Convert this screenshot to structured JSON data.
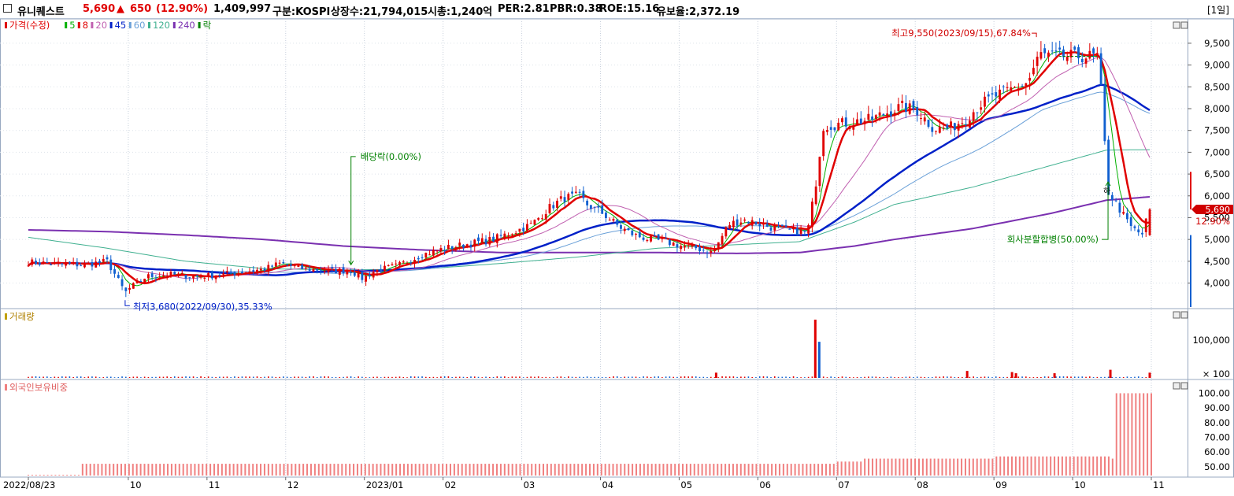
{
  "header": {
    "stock_name": "유니퀘스트",
    "price": "5,690",
    "change_arrow": "▲",
    "change": "650",
    "change_pct": "(12.90%)",
    "volume": "1,409,997",
    "market": "구분:KOSPI",
    "listed": "상장수:21,794,015",
    "mcap": "시총:1,240억",
    "per": "PER:2.81",
    "pbr": "PBR:0.38",
    "roe": "ROE:15.16",
    "retention": "유보율:2,372.19",
    "period": "[1일]"
  },
  "colors": {
    "up": "#e00000",
    "down": "#1060d0",
    "ma5": "#00b000",
    "ma8": "#e00000",
    "ma20": "#c060b0",
    "ma45": "#0020c8",
    "ma60": "#6aa0d8",
    "ma120": "#40b090",
    "ma240": "#7a30b0",
    "foreign": "#f08080",
    "annot": "#008000",
    "annot_red": "#d00000"
  },
  "legend": [
    {
      "label": "가격(수정)",
      "color": "#e00000"
    },
    {
      "label": "5",
      "color": "#00b000"
    },
    {
      "label": "8",
      "color": "#e00000"
    },
    {
      "label": "20",
      "color": "#c060b0"
    },
    {
      "label": "45",
      "color": "#0020c8"
    },
    {
      "label": "60",
      "color": "#6aa0d8"
    },
    {
      "label": "120",
      "color": "#40b090"
    },
    {
      "label": "240",
      "color": "#7a30b0"
    },
    {
      "label": "락",
      "color": "#008000"
    }
  ],
  "panels": {
    "volume_title": "거래량",
    "foreign_title": "외국인보유비중"
  },
  "annotations": {
    "high": "최고9,550(2023/09/15),67.84%",
    "low": "최저3,680(2022/09/30),35.33%",
    "dividend": "배당락(0.00%)",
    "split": "회사분할합병(50.00%)",
    "split_marker": "하"
  },
  "price_tag": {
    "price": "5,690",
    "pct": "12.90%"
  },
  "chart_data": {
    "type": "candlestick",
    "price_axis": {
      "ticks": [
        "9,500",
        "9,000",
        "8,500",
        "8,000",
        "7,500",
        "7,000",
        "6,500",
        "6,000",
        "5,500",
        "5,000",
        "4,500",
        "4,000"
      ],
      "values": [
        9500,
        9000,
        8500,
        8000,
        7500,
        7000,
        6500,
        6000,
        5500,
        5000,
        4500,
        4000
      ],
      "range": [
        3450,
        9950
      ]
    },
    "volume_axis": {
      "ticks": [
        "100,000",
        "× 100"
      ],
      "values": [
        100000,
        0
      ]
    },
    "foreign_axis": {
      "ticks": [
        "100.00",
        "90.00",
        "80.00",
        "70.00",
        "60.00",
        "50.00"
      ],
      "values": [
        100,
        90,
        80,
        70,
        60,
        50
      ],
      "range": [
        44,
        104
      ]
    },
    "x_labels": [
      "2022/08/23",
      "10",
      "11",
      "12",
      "2023/01",
      "02",
      "03",
      "04",
      "05",
      "06",
      "07",
      "08",
      "09",
      "10",
      "11"
    ],
    "months_from_start": [
      0,
      1.27,
      2.27,
      3.27,
      4.27,
      5.27,
      6.27,
      7.27,
      8.27,
      9.27,
      10.27,
      11.27,
      12.27,
      13.27,
      14.27
    ],
    "price_anchors": [
      [
        0,
        4480
      ],
      [
        0.35,
        4440
      ],
      [
        0.7,
        4420
      ],
      [
        1.0,
        4500
      ],
      [
        1.1,
        4200
      ],
      [
        1.23,
        3780
      ],
      [
        1.3,
        3900
      ],
      [
        1.5,
        4150
      ],
      [
        1.8,
        4200
      ],
      [
        2.1,
        4150
      ],
      [
        2.4,
        4180
      ],
      [
        2.7,
        4250
      ],
      [
        3.0,
        4320
      ],
      [
        3.2,
        4450
      ],
      [
        3.5,
        4330
      ],
      [
        3.9,
        4280
      ],
      [
        4.1,
        4290
      ],
      [
        4.25,
        4100
      ],
      [
        4.4,
        4280
      ],
      [
        4.7,
        4400
      ],
      [
        5.0,
        4650
      ],
      [
        5.3,
        4800
      ],
      [
        5.6,
        4900
      ],
      [
        5.9,
        5000
      ],
      [
        6.2,
        5200
      ],
      [
        6.4,
        5350
      ],
      [
        6.6,
        5700
      ],
      [
        6.8,
        5950
      ],
      [
        7.0,
        6000
      ],
      [
        7.1,
        5800
      ],
      [
        7.3,
        5600
      ],
      [
        7.5,
        5300
      ],
      [
        7.7,
        5100
      ],
      [
        7.9,
        5000
      ],
      [
        8.1,
        4950
      ],
      [
        8.3,
        4850
      ],
      [
        8.5,
        4800
      ],
      [
        8.7,
        4700
      ],
      [
        8.9,
        5350
      ],
      [
        9.1,
        5450
      ],
      [
        9.3,
        5350
      ],
      [
        9.5,
        5250
      ],
      [
        9.7,
        5200
      ],
      [
        9.9,
        5150
      ],
      [
        10.0,
        6200
      ],
      [
        10.1,
        7600
      ],
      [
        10.3,
        7650
      ],
      [
        10.5,
        7700
      ],
      [
        10.7,
        7750
      ],
      [
        10.9,
        7900
      ],
      [
        11.1,
        8050
      ],
      [
        11.3,
        7950
      ],
      [
        11.5,
        7550
      ],
      [
        11.7,
        7550
      ],
      [
        11.9,
        7750
      ],
      [
        12.1,
        8100
      ],
      [
        12.3,
        8300
      ],
      [
        12.5,
        8450
      ],
      [
        12.7,
        8600
      ],
      [
        12.85,
        9250
      ],
      [
        13.0,
        9200
      ],
      [
        13.3,
        9200
      ],
      [
        13.6,
        9200
      ],
      [
        13.72,
        6100
      ],
      [
        13.85,
        5750
      ],
      [
        14.0,
        5300
      ],
      [
        14.15,
        5100
      ],
      [
        14.25,
        5690
      ]
    ],
    "ma240_anchors": [
      [
        0,
        5220
      ],
      [
        1,
        5180
      ],
      [
        2,
        5100
      ],
      [
        3,
        5000
      ],
      [
        4,
        4850
      ],
      [
        5,
        4760
      ],
      [
        6,
        4700
      ],
      [
        7,
        4700
      ],
      [
        8,
        4700
      ],
      [
        9,
        4680
      ],
      [
        9.8,
        4700
      ],
      [
        10.5,
        4850
      ],
      [
        11,
        5000
      ],
      [
        12,
        5250
      ],
      [
        13,
        5600
      ],
      [
        13.7,
        5900
      ],
      [
        14.27,
        5980
      ]
    ],
    "ma120_anchors": [
      [
        0,
        5050
      ],
      [
        1,
        4800
      ],
      [
        2,
        4500
      ],
      [
        3,
        4330
      ],
      [
        4,
        4300
      ],
      [
        5,
        4320
      ],
      [
        6,
        4450
      ],
      [
        7,
        4600
      ],
      [
        8,
        4800
      ],
      [
        9,
        4880
      ],
      [
        9.8,
        4950
      ],
      [
        10.5,
        5400
      ],
      [
        11,
        5800
      ],
      [
        12,
        6200
      ],
      [
        13,
        6700
      ],
      [
        13.7,
        7050
      ],
      [
        14.27,
        7060
      ]
    ],
    "foreign_pct": {
      "segments": [
        [
          0,
          44.5
        ],
        [
          0.66,
          52
        ],
        [
          10.27,
          53.5
        ],
        [
          10.6,
          55.5
        ],
        [
          12.3,
          57
        ],
        [
          13.75,
          55.5
        ],
        [
          13.8,
          100
        ],
        [
          14.27,
          100
        ]
      ]
    },
    "volume_spikes": [
      [
        10.0,
        100
      ],
      [
        10.05,
        62
      ],
      [
        13.75,
        14
      ],
      [
        14.25,
        9
      ],
      [
        11.93,
        12
      ],
      [
        8.74,
        9
      ],
      [
        12.5,
        10
      ],
      [
        12.55,
        8
      ],
      [
        13.04,
        8
      ]
    ]
  }
}
